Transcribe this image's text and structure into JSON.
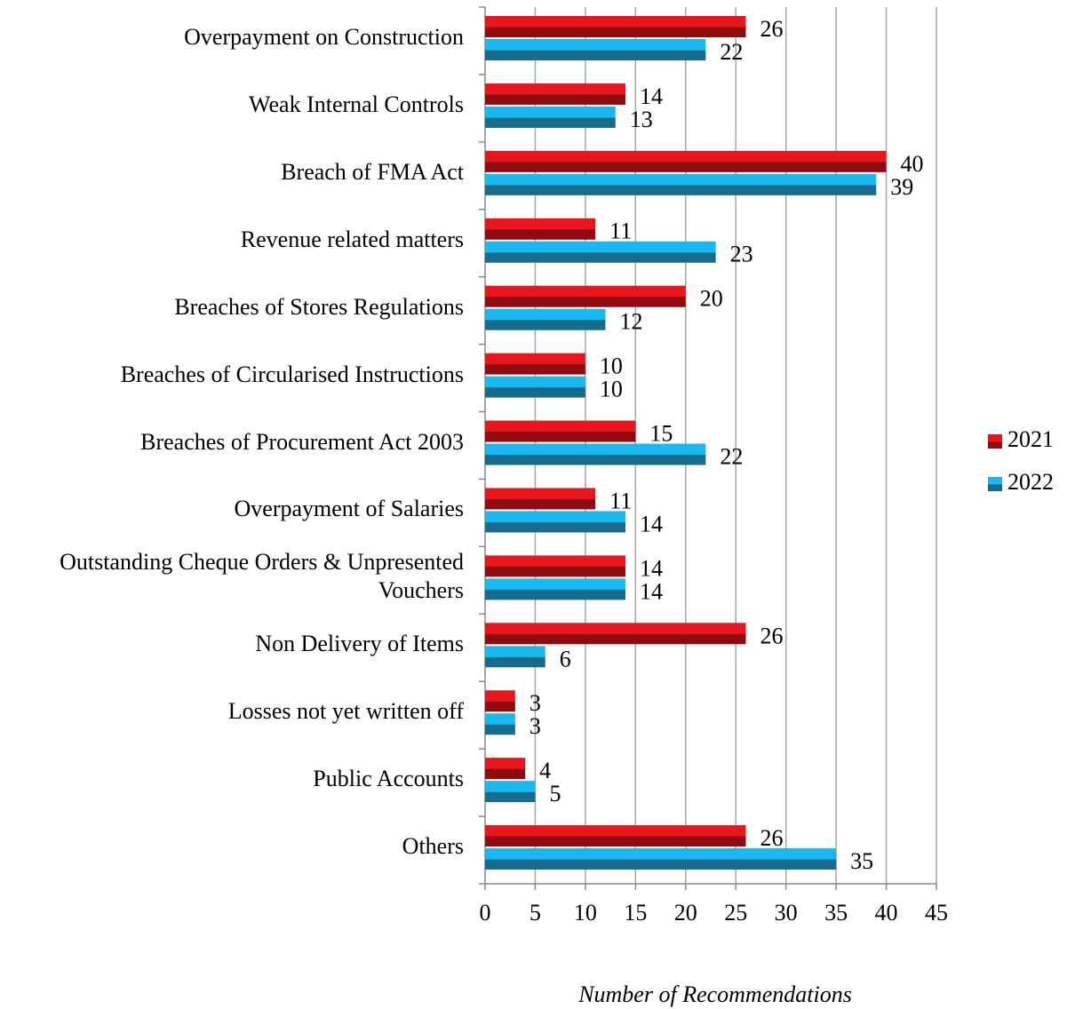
{
  "chart_data": {
    "type": "bar",
    "orientation": "horizontal",
    "x_label": "Number of Recommendations",
    "categories": [
      "Overpayment on Construction",
      "Weak Internal Controls",
      "Breach of FMA Act",
      "Revenue related matters",
      "Breaches of Stores Regulations",
      "Breaches of Circularised Instructions",
      "Breaches of Procurement Act 2003",
      "Overpayment of Salaries",
      "Outstanding Cheque Orders & Unpresented Vouchers",
      "Non Delivery of Items",
      "Losses not yet written off",
      "Public Accounts",
      "Others"
    ],
    "series": [
      {
        "name": "2021",
        "color": "#e8161d",
        "dark": "#8e0c10",
        "values": [
          26,
          14,
          40,
          11,
          20,
          10,
          15,
          11,
          14,
          26,
          3,
          4,
          26
        ]
      },
      {
        "name": "2022",
        "color": "#19b9f0",
        "dark": "#176c8c",
        "values": [
          22,
          13,
          39,
          23,
          12,
          10,
          22,
          14,
          14,
          6,
          3,
          5,
          35
        ]
      }
    ],
    "xlim": [
      0,
      45
    ],
    "xticks": [
      0,
      5,
      10,
      15,
      20,
      25,
      30,
      35,
      40,
      45
    ],
    "grid": true,
    "legend": "right"
  }
}
